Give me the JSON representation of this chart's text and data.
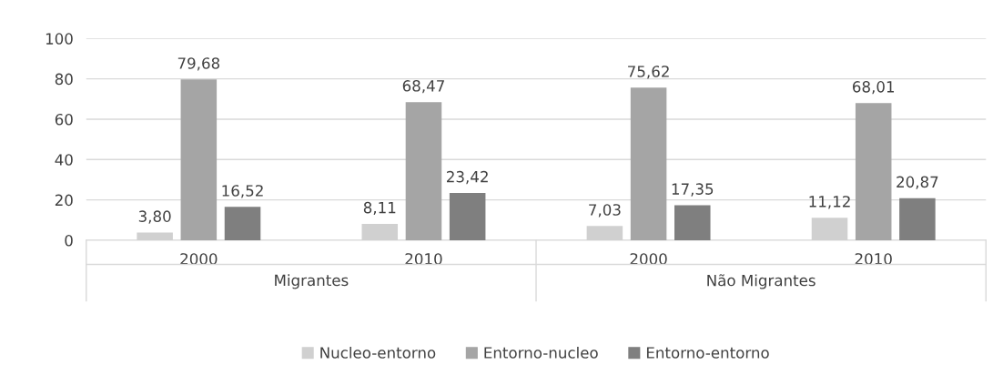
{
  "chart_data": {
    "type": "bar",
    "categories": [
      "2000",
      "2010",
      "2000",
      "2010"
    ],
    "annotations": [
      "Migrantes",
      "Não Migrantes"
    ],
    "series": [
      {
        "name": "Nucleo-entorno",
        "color": "#d0d0d0",
        "values": [
          3.8,
          8.11,
          7.03,
          11.12
        ],
        "value_labels": [
          "3,80",
          "8,11",
          "7,03",
          "11,12"
        ]
      },
      {
        "name": "Entorno-nucleo",
        "color": "#a5a5a5",
        "values": [
          79.68,
          68.47,
          75.62,
          68.01
        ],
        "value_labels": [
          "79,68",
          "68,47",
          "75,62",
          "68,01"
        ]
      },
      {
        "name": "Entorno-entorno",
        "color": "#7f7f7f",
        "values": [
          16.52,
          23.42,
          17.35,
          20.87
        ],
        "value_labels": [
          "16,52",
          "23,42",
          "17,35",
          "20,87"
        ]
      }
    ],
    "ylim": [
      0,
      100
    ],
    "yticks": [
      0,
      20,
      40,
      60,
      80,
      100
    ],
    "grid": "y",
    "legend": "bottom"
  }
}
